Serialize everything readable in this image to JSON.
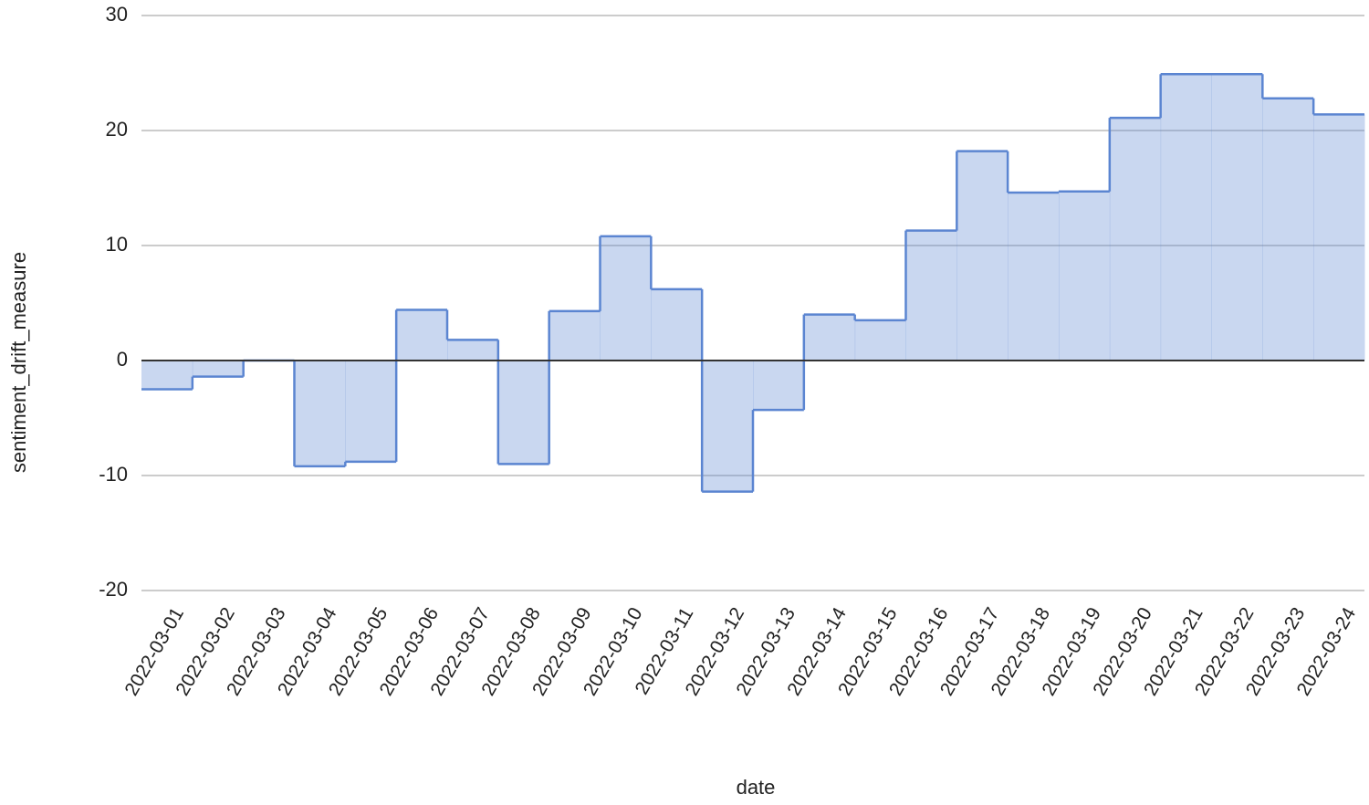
{
  "chart_data": {
    "type": "area",
    "step": true,
    "x_label": "date",
    "y_label": "sentiment_drift_measure",
    "categories": [
      "2022-03-01",
      "2022-03-02",
      "2022-03-03",
      "2022-03-04",
      "2022-03-05",
      "2022-03-06",
      "2022-03-07",
      "2022-03-08",
      "2022-03-09",
      "2022-03-10",
      "2022-03-11",
      "2022-03-12",
      "2022-03-13",
      "2022-03-14",
      "2022-03-15",
      "2022-03-16",
      "2022-03-17",
      "2022-03-18",
      "2022-03-19",
      "2022-03-20",
      "2022-03-21",
      "2022-03-22",
      "2022-03-23",
      "2022-03-24"
    ],
    "series": [
      {
        "name": "sentiment_drift_measure",
        "color": "#5b85d1",
        "values": [
          -2.5,
          -1.4,
          0,
          -9.2,
          -8.8,
          4.4,
          1.8,
          -9.0,
          4.3,
          10.8,
          6.2,
          -11.4,
          -4.3,
          4.0,
          3.5,
          11.3,
          18.2,
          14.6,
          14.7,
          21.1,
          24.9,
          24.9,
          22.8,
          21.4
        ]
      }
    ],
    "ylim": [
      -20,
      30
    ],
    "yticks": [
      -20,
      -10,
      0,
      10,
      20,
      30
    ],
    "grid": true
  }
}
